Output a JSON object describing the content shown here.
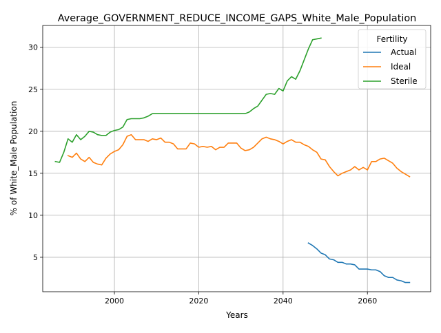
{
  "chart_data": {
    "type": "line",
    "title": "Average_GOVERNMENT_REDUCE_INCOME_GAPS_White_Male_Population",
    "xlabel": "Years",
    "ylabel": "% of White_Male Population",
    "xlim": [
      1983,
      2075
    ],
    "ylim": [
      0.9,
      32.6
    ],
    "xticks": [
      2000,
      2020,
      2040,
      2060
    ],
    "yticks": [
      5,
      10,
      15,
      20,
      25,
      30
    ],
    "grid": true,
    "legend": {
      "title": "Fertility",
      "position": "top-right"
    },
    "series": [
      {
        "name": "Actual",
        "color": "#1f77b4",
        "x": [
          2046,
          2047,
          2048,
          2049,
          2050,
          2051,
          2052,
          2053,
          2054,
          2055,
          2056,
          2057,
          2058,
          2059,
          2060,
          2061,
          2062,
          2063,
          2064,
          2065,
          2066,
          2067,
          2068,
          2069,
          2070
        ],
        "y": [
          6.7,
          6.4,
          6.0,
          5.5,
          5.3,
          4.8,
          4.7,
          4.4,
          4.4,
          4.2,
          4.2,
          4.1,
          3.6,
          3.6,
          3.6,
          3.5,
          3.5,
          3.3,
          2.8,
          2.6,
          2.6,
          2.3,
          2.2,
          2.0,
          2.0
        ]
      },
      {
        "name": "Ideal",
        "color": "#ff7f0e",
        "x": [
          1989,
          1990,
          1991,
          1992,
          1993,
          1994,
          1995,
          1996,
          1997,
          1998,
          1999,
          2000,
          2001,
          2002,
          2003,
          2004,
          2005,
          2006,
          2007,
          2008,
          2009,
          2010,
          2011,
          2012,
          2013,
          2014,
          2015,
          2016,
          2017,
          2018,
          2019,
          2020,
          2021,
          2022,
          2023,
          2024,
          2025,
          2026,
          2027,
          2028,
          2029,
          2030,
          2031,
          2032,
          2033,
          2034,
          2035,
          2036,
          2037,
          2038,
          2039,
          2040,
          2041,
          2042,
          2043,
          2044,
          2045,
          2046,
          2047,
          2048,
          2049,
          2050,
          2051,
          2052,
          2053,
          2054,
          2055,
          2056,
          2057,
          2058,
          2059,
          2060,
          2061,
          2062,
          2063,
          2064,
          2065,
          2066,
          2067,
          2068,
          2069,
          2070
        ],
        "y": [
          17.1,
          16.9,
          17.4,
          16.7,
          16.4,
          16.9,
          16.3,
          16.1,
          16.0,
          16.8,
          17.3,
          17.6,
          17.8,
          18.4,
          19.4,
          19.6,
          19.0,
          19.0,
          19.0,
          18.8,
          19.1,
          19.0,
          19.2,
          18.7,
          18.7,
          18.5,
          17.9,
          17.9,
          17.9,
          18.6,
          18.5,
          18.1,
          18.2,
          18.1,
          18.2,
          17.8,
          18.1,
          18.1,
          18.6,
          18.6,
          18.6,
          18.0,
          17.7,
          17.8,
          18.1,
          18.6,
          19.1,
          19.3,
          19.1,
          19.0,
          18.8,
          18.5,
          18.8,
          19.0,
          18.7,
          18.7,
          18.4,
          18.2,
          17.8,
          17.5,
          16.7,
          16.6,
          15.8,
          15.2,
          14.7,
          15.0,
          15.2,
          15.4,
          15.8,
          15.4,
          15.7,
          15.4,
          16.4,
          16.4,
          16.7,
          16.8,
          16.5,
          16.2,
          15.6,
          15.2,
          14.9,
          14.6
        ]
      },
      {
        "name": "Sterile",
        "color": "#2ca02c",
        "x": [
          1986,
          1987,
          1988,
          1989,
          1990,
          1991,
          1992,
          1993,
          1994,
          1995,
          1996,
          1997,
          1998,
          1999,
          2000,
          2001,
          2002,
          2003,
          2004,
          2005,
          2006,
          2007,
          2008,
          2009,
          2010,
          2011,
          2012,
          2013,
          2014,
          2015,
          2016,
          2017,
          2018,
          2019,
          2020,
          2021,
          2022,
          2023,
          2024,
          2025,
          2026,
          2027,
          2028,
          2029,
          2030,
          2031,
          2032,
          2033,
          2034,
          2035,
          2036,
          2037,
          2038,
          2039,
          2040,
          2041,
          2042,
          2043,
          2044,
          2045,
          2046,
          2047,
          2048,
          2049
        ],
        "y": [
          16.4,
          16.3,
          17.5,
          19.1,
          18.7,
          19.6,
          19.0,
          19.4,
          20.0,
          19.9,
          19.6,
          19.5,
          19.5,
          19.9,
          20.1,
          20.2,
          20.5,
          21.4,
          21.5,
          21.5,
          21.5,
          21.6,
          21.8,
          22.1,
          22.1,
          22.1,
          22.1,
          22.1,
          22.1,
          22.1,
          22.1,
          22.1,
          22.1,
          22.1,
          22.1,
          22.1,
          22.1,
          22.1,
          22.1,
          22.1,
          22.1,
          22.1,
          22.1,
          22.1,
          22.1,
          22.1,
          22.3,
          22.7,
          23.0,
          23.7,
          24.4,
          24.5,
          24.4,
          25.1,
          24.8,
          26.0,
          26.5,
          26.2,
          27.2,
          28.5,
          29.8,
          30.9,
          31.0,
          31.1
        ]
      }
    ]
  }
}
